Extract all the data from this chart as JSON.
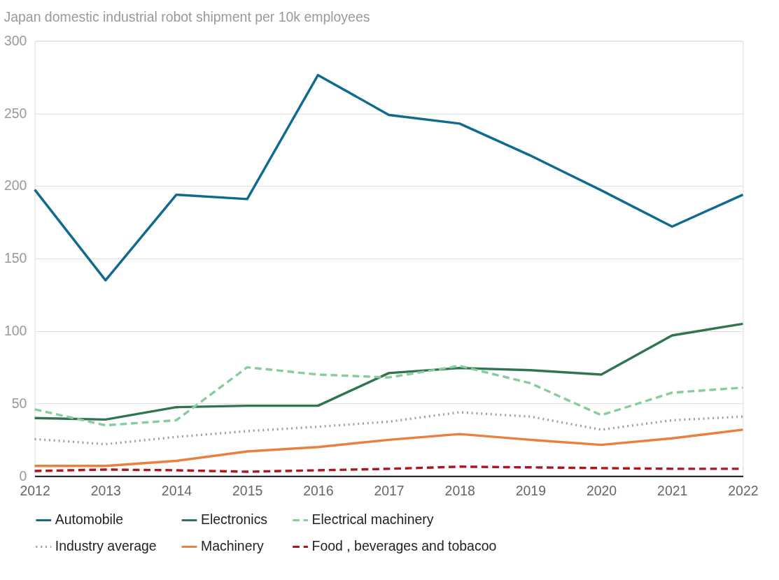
{
  "chart_data": {
    "type": "line",
    "title": "Japan domestic industrial robot shipment per 10k employees",
    "x": [
      2012,
      2013,
      2014,
      2015,
      2016,
      2017,
      2018,
      2019,
      2020,
      2021,
      2022
    ],
    "xlim": [
      2012,
      2022
    ],
    "xticks": [
      2012,
      2013,
      2014,
      2015,
      2016,
      2017,
      2018,
      2019,
      2020,
      2021,
      2022
    ],
    "ylim": [
      0,
      300
    ],
    "yticks": [
      0,
      50,
      100,
      150,
      200,
      250,
      300
    ],
    "grid": "y",
    "legend": "bottom",
    "marker": "none",
    "series": [
      {
        "name": "Automobile",
        "color": "#0e6a8e",
        "line_style": "solid",
        "values": [
          197.5,
          135,
          194,
          191,
          276.5,
          249,
          243,
          221,
          197,
          172,
          194
        ]
      },
      {
        "name": "Electronics",
        "color": "#2e7550",
        "line_style": "solid",
        "values": [
          40,
          39,
          47.5,
          48.5,
          48.5,
          71,
          74.5,
          73,
          70,
          97,
          105
        ]
      },
      {
        "name": "Electrical machinery",
        "color": "#86cd9c",
        "line_style": "dashed",
        "values": [
          46,
          35,
          38.5,
          75,
          70,
          68,
          76,
          64,
          42,
          57.5,
          61
        ]
      },
      {
        "name": "Industry average",
        "color": "#9e9e9e",
        "line_style": "dotted",
        "values": [
          25.5,
          22,
          27,
          31,
          34,
          37.5,
          44,
          41,
          32,
          38.5,
          41
        ]
      },
      {
        "name": "Machinery",
        "color": "#eb7f3c",
        "line_style": "solid",
        "values": [
          7,
          7,
          10.5,
          17,
          20,
          25,
          29,
          25,
          21.5,
          26,
          32
        ]
      },
      {
        "name": "Food , beverages and tobacoo",
        "color": "#b0141f",
        "line_style": "dashed",
        "values": [
          3.5,
          4.5,
          4,
          3,
          4,
          5,
          6.5,
          6,
          5.5,
          5,
          5
        ]
      }
    ]
  }
}
